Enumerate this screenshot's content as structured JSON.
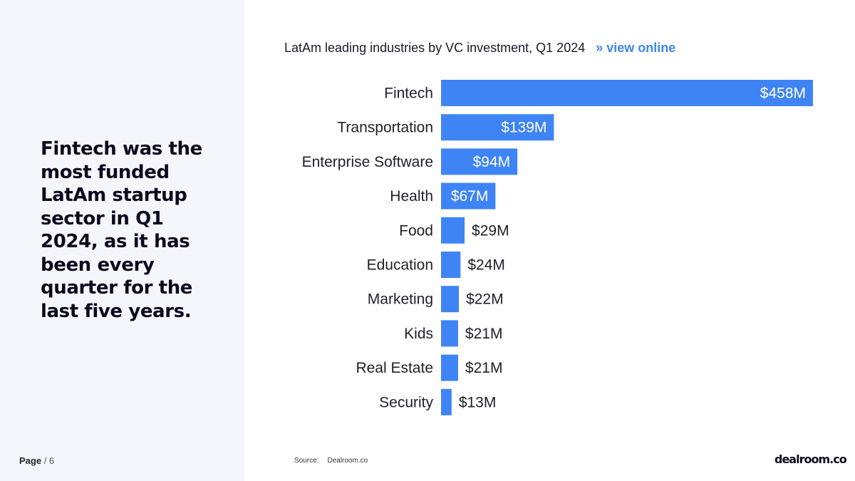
{
  "headline": "Fintech was the most funded LatAm startup sector in Q1 2024, as it has been every quarter for the last five years.",
  "page": {
    "label": "Page",
    "separator": " / ",
    "number": "6"
  },
  "chart_header": {
    "title": "LatAm leading industries by VC investment, Q1 2024",
    "link_label": "» view online"
  },
  "source": {
    "label": "Source:",
    "value": "Dealroom.co"
  },
  "brand": "dealroom.co",
  "colors": {
    "bar": "#3f84f5",
    "panel": "#f4f6fb",
    "text": "#0b0b1f",
    "link": "#3f84f5"
  },
  "chart_data": {
    "type": "bar",
    "orientation": "horizontal",
    "title": "LatAm leading industries by VC investment, Q1 2024",
    "xlabel": "",
    "ylabel": "",
    "unit": "$M",
    "grid": false,
    "categories": [
      "Fintech",
      "Transportation",
      "Enterprise Software",
      "Health",
      "Food",
      "Education",
      "Marketing",
      "Kids",
      "Real Estate",
      "Security"
    ],
    "values": [
      458,
      139,
      94,
      67,
      29,
      24,
      22,
      21,
      21,
      13
    ],
    "labels": [
      "$458M",
      "$139M",
      "$94M",
      "$67M",
      "$29M",
      "$24M",
      "$22M",
      "$21M",
      "$21M",
      "$13M"
    ],
    "xlim": [
      0,
      458
    ]
  }
}
